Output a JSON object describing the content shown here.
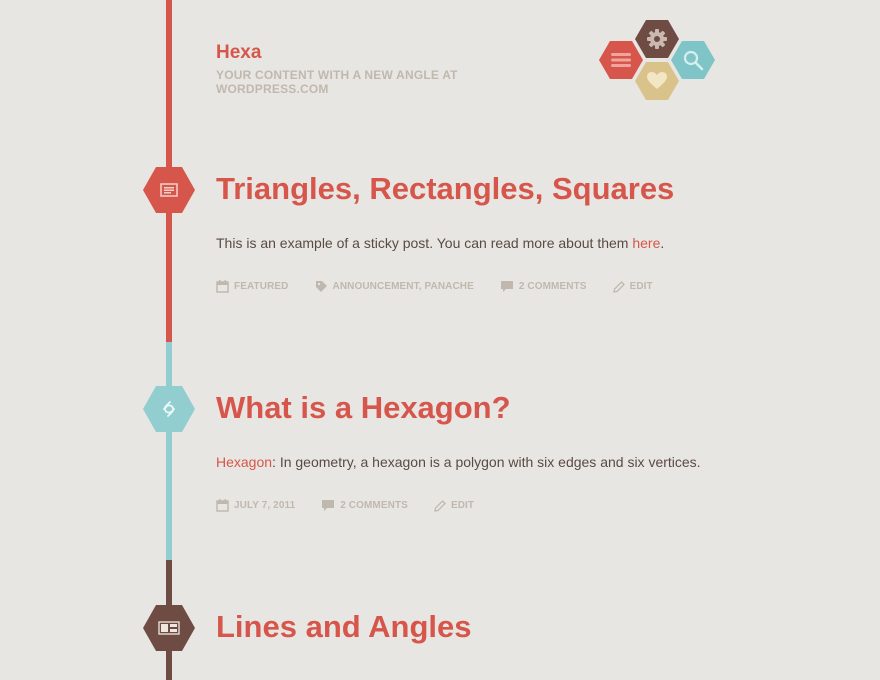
{
  "site": {
    "title": "Hexa",
    "description": "YOUR CONTENT WITH A NEW ANGLE AT WORDPRESS.COM"
  },
  "header_menu": [
    {
      "name": "menu",
      "icon": "menu-icon"
    },
    {
      "name": "settings",
      "icon": "gear-icon"
    },
    {
      "name": "search",
      "icon": "search-icon"
    },
    {
      "name": "social",
      "icon": "heart-icon"
    }
  ],
  "posts": [
    {
      "title": "Triangles, Rectangles, Squares",
      "format_icon": "standard-post-icon",
      "excerpt_text": "This is an example of a sticky post. You can read more about them ",
      "excerpt_link": "here",
      "excerpt_end": ".",
      "meta": {
        "featured": "FEATURED",
        "tags": "ANNOUNCEMENT, PANACHE",
        "comments": "2 COMMENTS",
        "edit": "EDIT"
      }
    },
    {
      "title": "What is a Hexagon?",
      "format_icon": "link-post-icon",
      "excerpt_link": "Hexagon",
      "excerpt_text": ": In geometry, a hexagon is a polygon with six edges and six vertices.",
      "meta": {
        "date": "JULY 7, 2011",
        "comments": "2 COMMENTS",
        "edit": "EDIT"
      }
    },
    {
      "title": "Lines and Angles",
      "format_icon": "gallery-post-icon"
    }
  ],
  "colors": {
    "background": "#e8e6e2",
    "accent_red": "#d6564b",
    "accent_teal": "#92cdd0",
    "accent_brown": "#6e4c43",
    "accent_gold": "#d9c38a",
    "meta_gray": "#c0b8ae",
    "text": "#5a4a44"
  }
}
